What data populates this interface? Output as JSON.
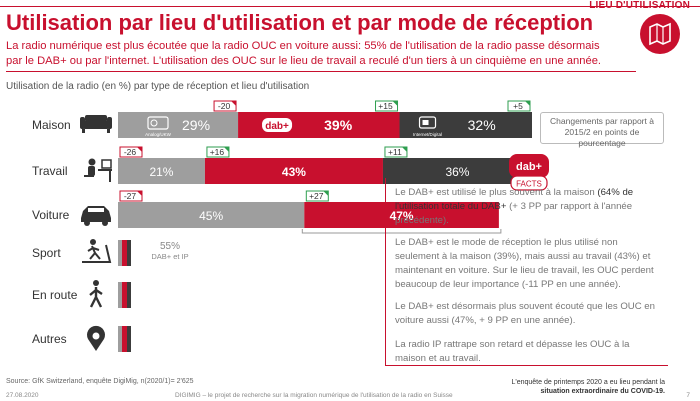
{
  "header": {
    "corner_label": "LIEU D'UTILISATION",
    "title": "Utilisation par lieu d'utilisation et par mode de réception",
    "subtitle_line1": "La radio numérique est plus écoutée que la radio OUC en voiture aussi: 55% de l'utilisation de la radio passe désormais",
    "subtitle_line2": "par le DAB+ ou par l'internet. L'utilisation des OUC sur le lieu de travail a reculé d'un tiers à un cinquième en une année.",
    "caption": "Utilisation de la radio (en %) par type de réception et lieu d'utilisation"
  },
  "colors": {
    "accent_red": "#c8102e",
    "ouc_gray": "#9e9e9e",
    "dab_red": "#c8102e",
    "ip_dark": "#3c3c3c",
    "badge_red": "#c8102e",
    "badge_green": "#2e9e4f"
  },
  "chart_data": {
    "type": "bar",
    "stacked": true,
    "orientation": "horizontal",
    "categories": [
      "Maison",
      "Travail",
      "Voiture",
      "Sport",
      "En route",
      "Autres"
    ],
    "series": [
      {
        "name": "Analog/UKW",
        "values": [
          29,
          21,
          45,
          null,
          null,
          null
        ],
        "changes_pp": [
          -20,
          -26,
          -27,
          null,
          null,
          null
        ]
      },
      {
        "name": "DAB+",
        "values": [
          39,
          43,
          47,
          null,
          null,
          null
        ],
        "changes_pp": [
          15,
          16,
          27,
          null,
          null,
          null
        ]
      },
      {
        "name": "Internet/Digital",
        "values": [
          32,
          36,
          null,
          null,
          null,
          null
        ],
        "changes_pp": [
          5,
          11,
          null,
          null,
          null,
          null
        ]
      }
    ],
    "value_labels": [
      [
        "29%",
        "39%",
        "32%"
      ],
      [
        "21%",
        "43%",
        "36%"
      ],
      [
        "45%",
        "47%",
        ""
      ]
    ],
    "change_labels": [
      [
        "-20",
        "+15",
        "+5"
      ],
      [
        "-26",
        "+16",
        "+11"
      ],
      [
        "-27",
        "+27",
        ""
      ]
    ],
    "bar_icons": [
      "radio-icon",
      "dab-logo",
      "internet-radio-icon"
    ],
    "bar_icon_labels": [
      "Analog/UKW",
      "Internet/Digital"
    ],
    "combined_note_value": "55%",
    "combined_note_label": "DAB+ et IP",
    "legend_box": "Changements par rapport à 2015/2 en points de pourcentage",
    "row_icons": [
      "sofa-icon",
      "desk-worker-icon",
      "car-icon",
      "treadmill-icon",
      "walking-person-icon",
      "location-pin-icon"
    ]
  },
  "facts": {
    "logo_top": "dab+",
    "logo_bottom": "FACTS",
    "p1_plain": "Le DAB+ est utilisé le plus souvent à la maison ",
    "p1_bold": "(64% de l'utilisation totale du DAB+",
    "p1_rest": " (+ 3 PP par rapport à l'année précédente).",
    "p2": "Le DAB+ est le mode de réception le plus utilisé non seulement à la maison (39%), mais aussi au travail (43%) et maintenant en voiture. Sur le lieu de travail, les OUC perdent beaucoup de leur importance (-11 PP en une année).",
    "p3": "Le DAB+ est désormais plus souvent écouté que les OUC en voiture aussi (47%, + 9 PP en une année).",
    "p4": "La radio IP rattrape son retard et dépasse les OUC à la maison et au travail."
  },
  "footer": {
    "source": "Source: GfK Switzerland, enquête DigiMig, n(2020/1)= 2'625",
    "date": "27.08.2020",
    "center": "DIGIMIG – le projet de recherche sur la migration numérique de l'utilisation de la radio en Suisse",
    "note_line1": "L'enquête de printemps 2020 a eu lieu pendant la",
    "note_line2": "situation extraordinaire du COVID-19.",
    "page": "7"
  }
}
